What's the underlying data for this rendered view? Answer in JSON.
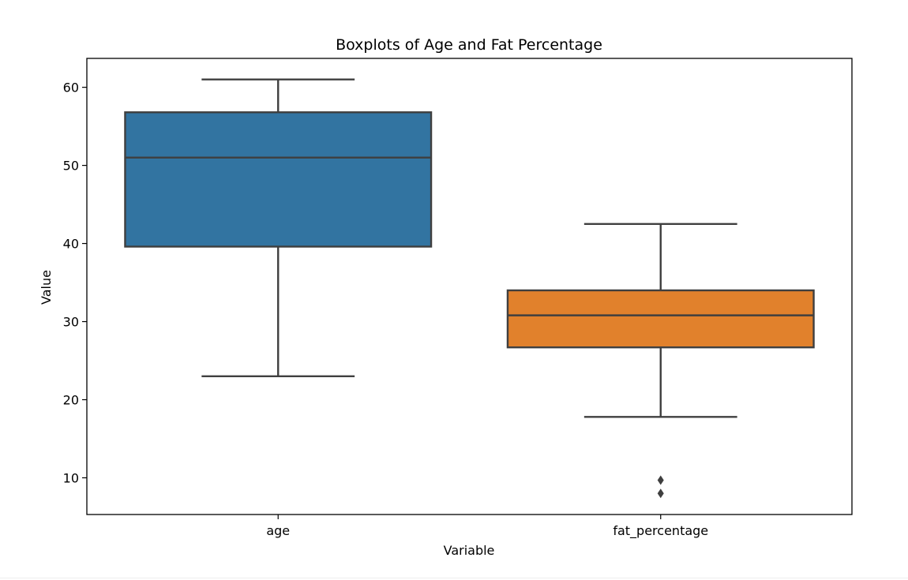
{
  "chart_data": {
    "type": "boxplot",
    "title": "Boxplots of Age and Fat Percentage",
    "xlabel": "Variable",
    "ylabel": "Value",
    "ylim": [
      5.3,
      63.7
    ],
    "yticks": [
      10,
      20,
      30,
      40,
      50,
      60
    ],
    "grid": false,
    "categories": [
      "age",
      "fat_percentage"
    ],
    "boxes": [
      {
        "category": "age",
        "color": "#3274a1",
        "whisker_low": 23.0,
        "q1": 39.6,
        "median": 51.0,
        "q3": 56.8,
        "whisker_high": 61.0,
        "outliers": []
      },
      {
        "category": "fat_percentage",
        "color": "#e1812c",
        "whisker_low": 17.8,
        "q1": 26.7,
        "median": 30.8,
        "q3": 34.0,
        "whisker_high": 42.5,
        "outliers": [
          9.7,
          8.0
        ]
      }
    ],
    "line_color": "#3f3f3f"
  }
}
